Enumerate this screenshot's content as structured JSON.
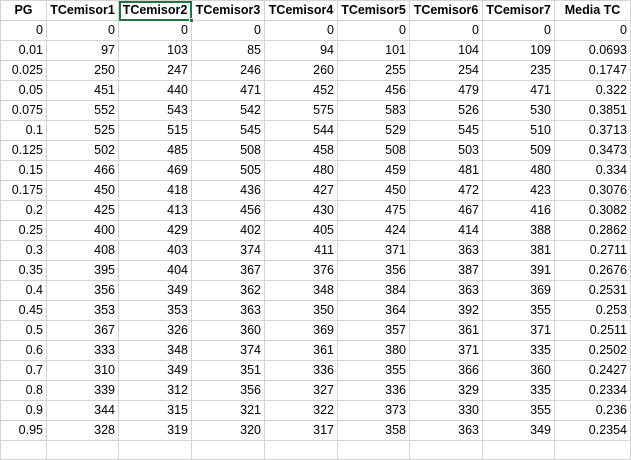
{
  "sheet": {
    "selected_cell": "TCemisor2",
    "headers": [
      "PG",
      "TCemisor1",
      "TCemisor2",
      "TCemisor3",
      "TCemisor4",
      "TCemisor5",
      "TCemisor6",
      "TCemisor7",
      "Media TC"
    ],
    "rows": [
      [
        "0",
        "0",
        "0",
        "0",
        "0",
        "0",
        "0",
        "0",
        "0"
      ],
      [
        "0.01",
        "97",
        "103",
        "85",
        "94",
        "101",
        "104",
        "109",
        "0.0693"
      ],
      [
        "0.025",
        "250",
        "247",
        "246",
        "260",
        "255",
        "254",
        "235",
        "0.1747"
      ],
      [
        "0.05",
        "451",
        "440",
        "471",
        "452",
        "456",
        "479",
        "471",
        "0.322"
      ],
      [
        "0.075",
        "552",
        "543",
        "542",
        "575",
        "583",
        "526",
        "530",
        "0.3851"
      ],
      [
        "0.1",
        "525",
        "515",
        "545",
        "544",
        "529",
        "545",
        "510",
        "0.3713"
      ],
      [
        "0.125",
        "502",
        "485",
        "508",
        "458",
        "508",
        "503",
        "509",
        "0.3473"
      ],
      [
        "0.15",
        "466",
        "469",
        "505",
        "480",
        "459",
        "481",
        "480",
        "0.334"
      ],
      [
        "0.175",
        "450",
        "418",
        "436",
        "427",
        "450",
        "472",
        "423",
        "0.3076"
      ],
      [
        "0.2",
        "425",
        "413",
        "456",
        "430",
        "475",
        "467",
        "416",
        "0.3082"
      ],
      [
        "0.25",
        "400",
        "429",
        "402",
        "405",
        "424",
        "414",
        "388",
        "0.2862"
      ],
      [
        "0.3",
        "408",
        "403",
        "374",
        "411",
        "371",
        "363",
        "381",
        "0.2711"
      ],
      [
        "0.35",
        "395",
        "404",
        "367",
        "376",
        "356",
        "387",
        "391",
        "0.2676"
      ],
      [
        "0.4",
        "356",
        "349",
        "362",
        "348",
        "384",
        "363",
        "369",
        "0.2531"
      ],
      [
        "0.45",
        "353",
        "353",
        "363",
        "350",
        "364",
        "392",
        "355",
        "0.253"
      ],
      [
        "0.5",
        "367",
        "326",
        "360",
        "369",
        "357",
        "361",
        "371",
        "0.2511"
      ],
      [
        "0.6",
        "333",
        "348",
        "374",
        "361",
        "380",
        "371",
        "335",
        "0.2502"
      ],
      [
        "0.7",
        "310",
        "349",
        "351",
        "336",
        "355",
        "366",
        "360",
        "0.2427"
      ],
      [
        "0.8",
        "339",
        "312",
        "356",
        "327",
        "336",
        "329",
        "335",
        "0.2334"
      ],
      [
        "0.9",
        "344",
        "315",
        "321",
        "322",
        "373",
        "330",
        "355",
        "0.236"
      ],
      [
        "0.95",
        "328",
        "319",
        "320",
        "317",
        "358",
        "363",
        "349",
        "0.2354"
      ],
      [
        "",
        "",
        "",
        "",
        "",
        "",
        "",
        "",
        ""
      ]
    ]
  },
  "colors": {
    "gridline": "#d4d4d4",
    "selection": "#217346"
  }
}
